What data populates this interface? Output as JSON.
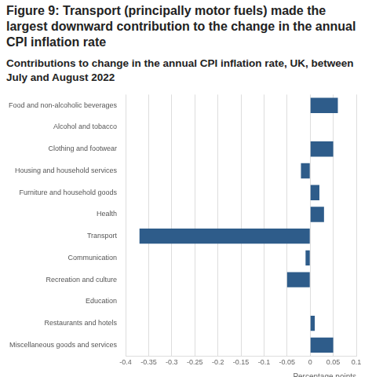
{
  "chart_data": {
    "type": "bar",
    "orientation": "horizontal",
    "title": "Figure 9: Transport (principally motor fuels) made the largest downward contribution to the change in the annual CPI inflation rate",
    "subtitle": "Contributions to change in the annual CPI inflation rate, UK, between July and August 2022",
    "x_label": "Percentage points",
    "categories": [
      "Food and non-alcoholic beverages",
      "Alcohol and tobacco",
      "Clothing and footwear",
      "Housing and household services",
      "Furniture and household goods",
      "Health",
      "Transport",
      "Communication",
      "Recreation and culture",
      "Education",
      "Restaurants and hotels",
      "Miscellaneous goods and services"
    ],
    "values": [
      0.06,
      0,
      0.05,
      -0.02,
      0.02,
      0.03,
      -0.37,
      -0.01,
      -0.05,
      0,
      0.01,
      0.05
    ],
    "color": "#2e5c8a",
    "xlim": [
      -0.4,
      0.1
    ],
    "xticks": [
      -0.4,
      -0.35,
      -0.3,
      -0.25,
      -0.2,
      -0.15,
      -0.1,
      -0.05,
      0,
      0.05,
      0.1
    ],
    "grid": true
  }
}
